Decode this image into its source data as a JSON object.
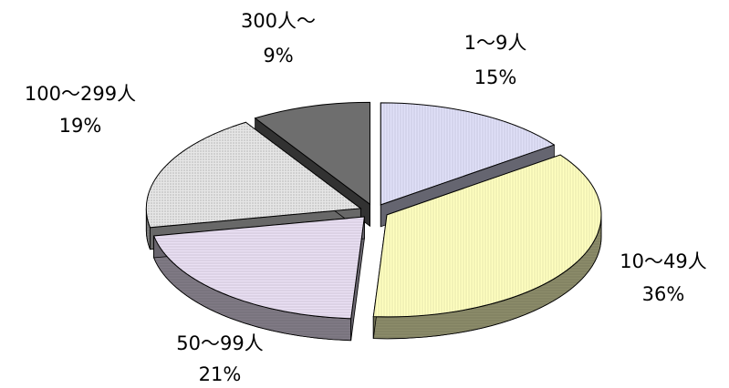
{
  "chart_data": {
    "type": "pie",
    "style": "3d-exploded",
    "legend": "none",
    "slices": [
      {
        "label": "1～9人",
        "value": 15,
        "percent_text": "15%",
        "color": "#E0E0F8",
        "pattern": "vertical-lines"
      },
      {
        "label": "10～49人",
        "value": 36,
        "percent_text": "36%",
        "color": "#FFFFC0",
        "pattern": "vertical-lines"
      },
      {
        "label": "50～99人",
        "value": 21,
        "percent_text": "21%",
        "color": "#EAE0F4",
        "pattern": "horizontal-lines"
      },
      {
        "label": "100～299人",
        "value": 19,
        "percent_text": "19%",
        "color": "#E6E6E6",
        "pattern": "dots"
      },
      {
        "label": "300人～",
        "value": 9,
        "percent_text": "9%",
        "color": "#6E6E6E",
        "pattern": "solid"
      }
    ]
  }
}
